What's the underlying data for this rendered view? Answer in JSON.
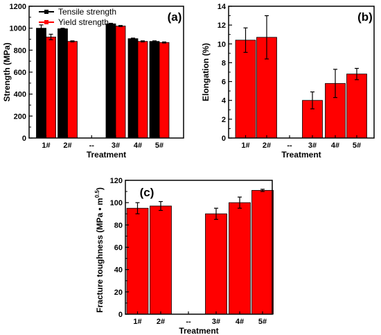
{
  "colors": {
    "tensile": "#000000",
    "yield": "#ff0000",
    "bar_edge": "#000000",
    "error": "#000000"
  },
  "chart_data": [
    {
      "panel": "(a)",
      "type": "bar",
      "xlabel": "Treatment",
      "ylabel": "Strength (MPa)",
      "ylim": [
        0,
        1200
      ],
      "yticks": [
        0,
        200,
        400,
        600,
        800,
        1000,
        1200
      ],
      "categories": [
        "1#",
        "2#",
        "--",
        "3#",
        "4#",
        "5#"
      ],
      "legend_position": "top-left",
      "series": [
        {
          "name": "Tensile strength",
          "values": [
            1000,
            995,
            null,
            1040,
            905,
            880
          ],
          "errors": [
            30,
            5,
            null,
            5,
            5,
            5
          ]
        },
        {
          "name": "Yield strength",
          "values": [
            920,
            880,
            null,
            1020,
            880,
            870
          ],
          "errors": [
            25,
            5,
            null,
            5,
            5,
            5
          ]
        }
      ]
    },
    {
      "panel": "(b)",
      "type": "bar",
      "xlabel": "Treatment",
      "ylabel": "Elongation (%)",
      "ylim": [
        0,
        14
      ],
      "yticks": [
        0,
        2,
        4,
        6,
        8,
        10,
        12,
        14
      ],
      "categories": [
        "1#",
        "2#",
        "--",
        "3#",
        "4#",
        "5#"
      ],
      "series": [
        {
          "values": [
            10.4,
            10.7,
            null,
            4.0,
            5.8,
            6.8
          ],
          "errors": [
            1.3,
            2.3,
            null,
            0.9,
            1.5,
            0.6
          ]
        }
      ]
    },
    {
      "panel": "(c)",
      "type": "bar",
      "xlabel": "Treatment",
      "ylabel": "Fracture toughness (MPa • m",
      "ylabel_superscript": "0.5",
      "ylabel_close": ")",
      "ylim": [
        0,
        120
      ],
      "yticks": [
        0,
        20,
        40,
        60,
        80,
        100,
        120
      ],
      "categories": [
        "1#",
        "2#",
        "--",
        "3#",
        "4#",
        "5#"
      ],
      "series": [
        {
          "values": [
            95,
            97,
            null,
            90,
            100,
            111
          ],
          "errors": [
            5,
            4,
            null,
            5,
            5,
            1
          ]
        }
      ]
    }
  ]
}
